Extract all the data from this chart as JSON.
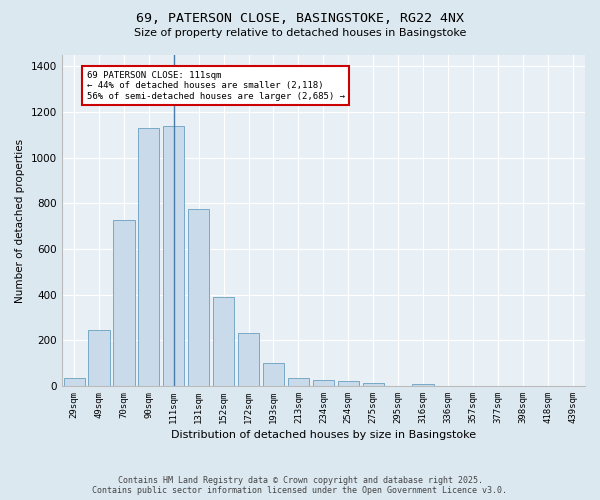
{
  "title_line1": "69, PATERSON CLOSE, BASINGSTOKE, RG22 4NX",
  "title_line2": "Size of property relative to detached houses in Basingstoke",
  "xlabel": "Distribution of detached houses by size in Basingstoke",
  "ylabel": "Number of detached properties",
  "categories": [
    "29sqm",
    "49sqm",
    "70sqm",
    "90sqm",
    "111sqm",
    "131sqm",
    "152sqm",
    "172sqm",
    "193sqm",
    "213sqm",
    "234sqm",
    "254sqm",
    "275sqm",
    "295sqm",
    "316sqm",
    "336sqm",
    "357sqm",
    "377sqm",
    "398sqm",
    "418sqm",
    "439sqm"
  ],
  "values": [
    35,
    245,
    725,
    1130,
    1140,
    775,
    390,
    230,
    100,
    35,
    25,
    20,
    15,
    0,
    10,
    0,
    0,
    0,
    0,
    0,
    0
  ],
  "bar_color": "#c9daea",
  "bar_edge_color": "#6a9fc0",
  "highlight_bar_index": 4,
  "highlight_line_color": "#4a7aaa",
  "annotation_line1": "69 PATERSON CLOSE: 111sqm",
  "annotation_line2": "← 44% of detached houses are smaller (2,118)",
  "annotation_line3": "56% of semi-detached houses are larger (2,685) →",
  "annotation_box_facecolor": "#ffffff",
  "annotation_box_edgecolor": "#cc0000",
  "ylim": [
    0,
    1450
  ],
  "yticks": [
    0,
    200,
    400,
    600,
    800,
    1000,
    1200,
    1400
  ],
  "bg_color": "#dce8f0",
  "plot_bg_color": "#e8f0f6",
  "grid_color": "#ffffff",
  "footer_line1": "Contains HM Land Registry data © Crown copyright and database right 2025.",
  "footer_line2": "Contains public sector information licensed under the Open Government Licence v3.0."
}
